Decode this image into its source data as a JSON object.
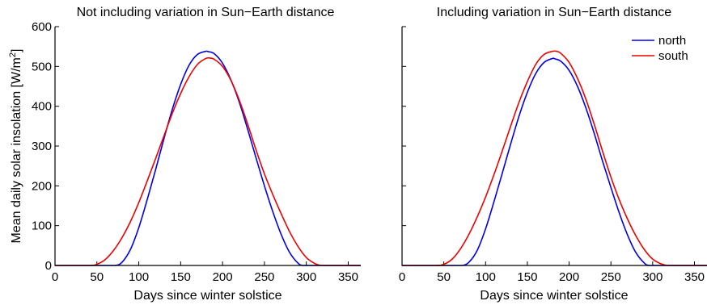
{
  "shared": {
    "ylabel": "Mean daily solar insolation [W/m",
    "ylabel_sup": "2",
    "ylabel_end": "]"
  },
  "chart_data": [
    {
      "type": "line",
      "title": "Not including variation in Sun−Earth distance",
      "xlabel": "Days since winter solstice",
      "ylabel": "Mean daily solar insolation [W/m2]",
      "xlim": [
        0,
        365
      ],
      "ylim": [
        0,
        600
      ],
      "xticks": [
        "0",
        "50",
        "100",
        "150",
        "200",
        "250",
        "300",
        "350"
      ],
      "yticks": [
        "0",
        "100",
        "200",
        "300",
        "400",
        "500",
        "600"
      ],
      "grid": false,
      "series": [
        {
          "color": "#0000ee",
          "x": [
            0,
            60,
            72,
            80,
            90,
            100,
            110,
            120,
            130,
            140,
            150,
            160,
            170,
            180,
            183,
            190,
            200,
            210,
            220,
            230,
            240,
            250,
            260,
            270,
            280,
            290,
            296,
            310,
            365
          ],
          "y": [
            0,
            0,
            0,
            8,
            40,
            95,
            165,
            240,
            318,
            392,
            455,
            503,
            530,
            538,
            537,
            532,
            508,
            466,
            410,
            342,
            270,
            200,
            135,
            78,
            33,
            6,
            0,
            0,
            0
          ]
        },
        {
          "color": "#ee0000",
          "x": [
            0,
            40,
            50,
            60,
            70,
            80,
            90,
            100,
            110,
            120,
            130,
            140,
            150,
            160,
            170,
            180,
            185,
            190,
            200,
            210,
            220,
            230,
            240,
            250,
            260,
            270,
            280,
            290,
            300,
            310,
            318,
            330,
            365
          ],
          "y": [
            0,
            0,
            3,
            15,
            38,
            70,
            110,
            158,
            212,
            268,
            325,
            382,
            432,
            474,
            505,
            520,
            521,
            518,
            500,
            465,
            415,
            355,
            290,
            230,
            178,
            130,
            85,
            48,
            20,
            5,
            0,
            0,
            0
          ]
        }
      ]
    },
    {
      "type": "line",
      "title": "Including variation in Sun−Earth distance",
      "xlabel": "Days since winter solstice",
      "xlim": [
        0,
        365
      ],
      "ylim": [
        0,
        600
      ],
      "xticks": [
        "0",
        "50",
        "100",
        "150",
        "200",
        "250",
        "300",
        "350"
      ],
      "grid": false,
      "legend_position": "top-right",
      "series": [
        {
          "name": "north",
          "color": "#0000ee",
          "x": [
            0,
            60,
            72,
            80,
            90,
            100,
            110,
            120,
            130,
            140,
            150,
            160,
            170,
            180,
            183,
            190,
            200,
            210,
            220,
            230,
            240,
            250,
            260,
            270,
            280,
            290,
            296,
            310,
            365
          ],
          "y": [
            0,
            0,
            0,
            8,
            38,
            92,
            160,
            232,
            305,
            375,
            435,
            482,
            510,
            520,
            519,
            513,
            490,
            450,
            396,
            332,
            262,
            196,
            132,
            76,
            32,
            6,
            0,
            0,
            0
          ]
        },
        {
          "name": "south",
          "color": "#ee0000",
          "x": [
            0,
            40,
            50,
            60,
            70,
            80,
            90,
            100,
            110,
            120,
            130,
            140,
            150,
            160,
            170,
            180,
            185,
            190,
            200,
            210,
            220,
            230,
            240,
            250,
            260,
            270,
            280,
            290,
            300,
            310,
            318,
            330,
            365
          ],
          "y": [
            0,
            0,
            3,
            16,
            42,
            78,
            122,
            172,
            228,
            288,
            350,
            410,
            462,
            505,
            530,
            538,
            538,
            533,
            510,
            470,
            418,
            355,
            287,
            222,
            165,
            116,
            74,
            40,
            16,
            4,
            0,
            0,
            0
          ]
        }
      ]
    }
  ]
}
